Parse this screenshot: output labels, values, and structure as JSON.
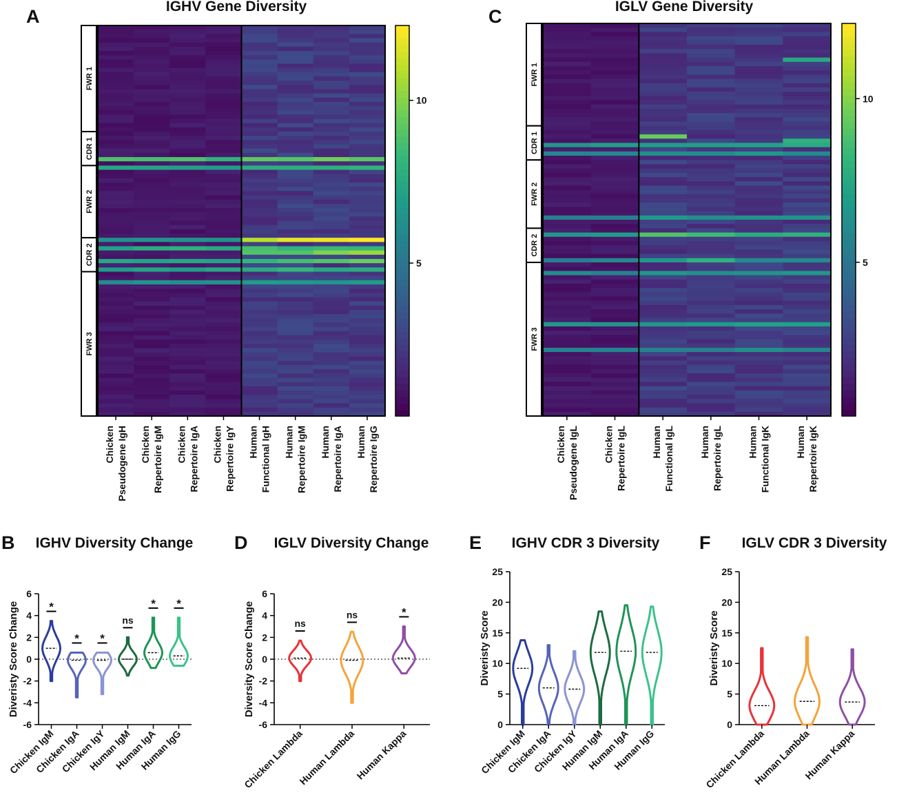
{
  "panels": {
    "A": {
      "letter": "A",
      "chart_data": {
        "type": "heatmap",
        "title": "IGHV Gene Diversity",
        "columns": [
          "Chicken\nPseudogene IgH",
          "Chicken\nRepertoire IgM",
          "Chicken\nRepertoire IgA",
          "Chicken\nRepertoire IgY",
          "Human\nFunctional IgH",
          "Human\nRepertoire IgM",
          "Human\nRepertoire IgA",
          "Human\nRepertoire IgG"
        ],
        "regions": [
          {
            "label": "FWR 1",
            "start": 0,
            "end": 25
          },
          {
            "label": "CDR 1",
            "start": 25,
            "end": 33
          },
          {
            "label": "FWR 2",
            "start": 33,
            "end": 50
          },
          {
            "label": "CDR 2",
            "start": 50,
            "end": 58
          },
          {
            "label": "FWR 3",
            "start": 58,
            "end": 92
          }
        ],
        "row_count": 92,
        "colorbar": {
          "ticks": [
            5,
            10
          ],
          "min": 0.3,
          "max": 12.3
        }
      }
    },
    "C": {
      "letter": "C",
      "chart_data": {
        "type": "heatmap",
        "title": "IGLV Gene Diversity",
        "columns": [
          "Chicken\nPseudogene IgL",
          "Chicken\nRepertoire IgL",
          "Human\nFunctional IgL",
          "Human\nRepertoire IgL",
          "Human\nFunctional IgK",
          "Human\nRepertoire IgK"
        ],
        "regions": [
          {
            "label": "FWR 1",
            "start": 0,
            "end": 24
          },
          {
            "label": "CDR 1",
            "start": 24,
            "end": 32
          },
          {
            "label": "FWR 2",
            "start": 32,
            "end": 48
          },
          {
            "label": "CDR 2",
            "start": 48,
            "end": 56
          },
          {
            "label": "FWR 3",
            "start": 56,
            "end": 92
          }
        ],
        "row_count": 92,
        "colorbar": {
          "ticks": [
            5,
            10
          ],
          "min": 0.3,
          "max": 12.3
        }
      }
    },
    "B": {
      "letter": "B",
      "chart_data": {
        "type": "violin",
        "title": "IGHV Diversity Change",
        "ylabel": "Diveristy Score Change",
        "ylim": [
          -6,
          6
        ],
        "yticks": [
          "-6",
          "-4",
          "-2",
          "0",
          "2",
          "4",
          "6"
        ],
        "zero_line": true,
        "series": [
          {
            "name": "Chicken IgM",
            "color": "#2a3d9c",
            "min": -2.0,
            "max": 3.5,
            "median": 1.0,
            "sig": "*"
          },
          {
            "name": "Chicken IgA",
            "color": "#5564b8",
            "min": -3.5,
            "max": 0.6,
            "median": -0.1,
            "sig": "*"
          },
          {
            "name": "Chicken IgY",
            "color": "#8c93d4",
            "min": -3.2,
            "max": 0.6,
            "median": -0.1,
            "sig": "*"
          },
          {
            "name": "Human IgM",
            "color": "#1d6b3f",
            "min": -1.5,
            "max": 2.0,
            "median": 0.0,
            "sig": "ns"
          },
          {
            "name": "Human IgA",
            "color": "#1e9457",
            "min": -0.8,
            "max": 3.8,
            "median": 0.6,
            "sig": "*"
          },
          {
            "name": "Human IgG",
            "color": "#3cc28a",
            "min": -0.6,
            "max": 3.8,
            "median": 0.3,
            "sig": "*"
          }
        ]
      }
    },
    "D": {
      "letter": "D",
      "chart_data": {
        "type": "violin",
        "title": "IGLV Diversity Change",
        "ylabel": "Diversity Score Change",
        "ylim": [
          -6,
          6
        ],
        "yticks": [
          "-6",
          "-4",
          "-2",
          "0",
          "2",
          "4",
          "6"
        ],
        "zero_line": true,
        "series": [
          {
            "name": "Chicken Lambda",
            "color": "#e8333a",
            "min": -2.0,
            "max": 1.7,
            "median": 0.1,
            "sig": "ns"
          },
          {
            "name": "Human Lambda",
            "color": "#f5a33a",
            "min": -4.0,
            "max": 2.5,
            "median": -0.1,
            "sig": "ns"
          },
          {
            "name": "Human Kappa",
            "color": "#8e4fa6",
            "min": -1.3,
            "max": 3.0,
            "median": 0.1,
            "sig": "*"
          }
        ]
      }
    },
    "E": {
      "letter": "E",
      "chart_data": {
        "type": "violin",
        "title": "IGHV CDR 3 Diversity",
        "ylabel": "Diveristy Score",
        "ylim": [
          0,
          25
        ],
        "yticks": [
          "0",
          "5",
          "10",
          "15",
          "20",
          "25"
        ],
        "zero_line": false,
        "series": [
          {
            "name": "Chicken IgM",
            "color": "#2a3d9c",
            "min": 0,
            "max": 13.8,
            "median": 9.2
          },
          {
            "name": "Chicken IgA",
            "color": "#5564b8",
            "min": 0,
            "max": 13.0,
            "median": 6.0
          },
          {
            "name": "Chicken IgY",
            "color": "#8c93d4",
            "min": 0,
            "max": 12.0,
            "median": 5.8
          },
          {
            "name": "Human IgM",
            "color": "#1d6b3f",
            "min": 0,
            "max": 18.5,
            "median": 11.8
          },
          {
            "name": "Human IgA",
            "color": "#1e9457",
            "min": 0,
            "max": 19.5,
            "median": 12.0
          },
          {
            "name": "Human IgG",
            "color": "#3cc28a",
            "min": 0,
            "max": 19.3,
            "median": 11.8
          }
        ]
      }
    },
    "F": {
      "letter": "F",
      "chart_data": {
        "type": "violin",
        "title": "IGLV CDR 3 Diversity",
        "ylabel": "Diveristy Score",
        "ylim": [
          0,
          25
        ],
        "yticks": [
          "0",
          "5",
          "10",
          "15",
          "20",
          "25"
        ],
        "zero_line": false,
        "series": [
          {
            "name": "Chicken Lambda",
            "color": "#e8333a",
            "min": 0,
            "max": 12.5,
            "median": 3.1
          },
          {
            "name": "Human Lambda",
            "color": "#f5a33a",
            "min": 0,
            "max": 14.3,
            "median": 3.8
          },
          {
            "name": "Human Kappa",
            "color": "#8e4fa6",
            "min": 0,
            "max": 12.3,
            "median": 3.7
          }
        ]
      }
    }
  }
}
